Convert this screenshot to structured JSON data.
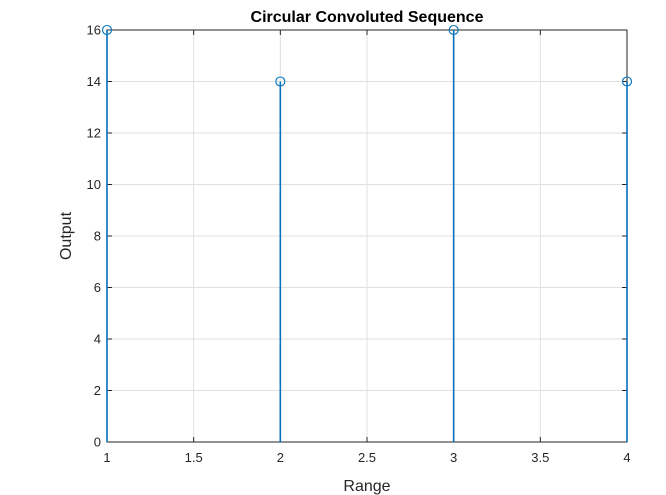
{
  "chart_data": {
    "type": "stem",
    "title": "Circular Convoluted Sequence",
    "xlabel": "Range",
    "ylabel": "Output",
    "x": [
      1,
      2,
      3,
      4
    ],
    "values": [
      16,
      14,
      16,
      14
    ],
    "xlim": [
      1,
      4
    ],
    "ylim": [
      0,
      16
    ],
    "xticks": [
      1,
      1.5,
      2,
      2.5,
      3,
      3.5,
      4
    ],
    "xtick_labels": [
      "1",
      "1.5",
      "2",
      "2.5",
      "3",
      "3.5",
      "4"
    ],
    "yticks": [
      0,
      2,
      4,
      6,
      8,
      10,
      12,
      14,
      16
    ],
    "ytick_labels": [
      "0",
      "2",
      "4",
      "6",
      "8",
      "10",
      "12",
      "14",
      "16"
    ],
    "grid": true,
    "color": "#0072BD"
  }
}
